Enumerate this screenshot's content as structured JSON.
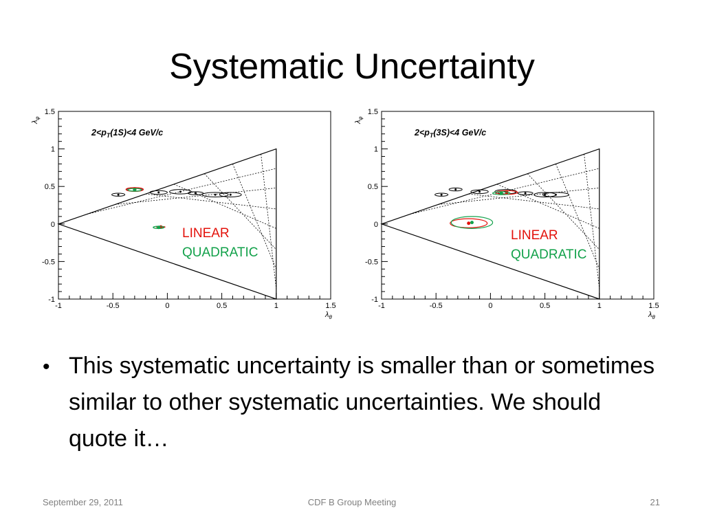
{
  "slide": {
    "title": "Systematic Uncertainty",
    "bullet": "This systematic uncertainty is smaller than or sometimes similar to other systematic uncertainties.  We should quote it…",
    "footer_date": "September 29, 2011",
    "footer_center": "CDF B Group Meeting",
    "footer_page": "21"
  },
  "colors": {
    "linear": "#e3120b",
    "quadratic": "#12a14a",
    "frame": "#000000"
  },
  "chart_data": [
    {
      "type": "scatter",
      "annotation_prefix": "2<p",
      "annotation_sub": "T",
      "annotation_suffix": "(1S)<4 GeV/c",
      "xlabel": "λ",
      "xlabel_sub": "θ",
      "ylabel": "λ",
      "ylabel_sub": "φ",
      "xlim": [
        -1,
        1.5
      ],
      "ylim": [
        -1,
        1.5
      ],
      "xticks": [
        "-1",
        "-0.5",
        "0",
        "0.5",
        "1",
        "1.5"
      ],
      "yticks": [
        "-1",
        "-0.5",
        "0",
        "0.5",
        "1",
        "1.5"
      ],
      "legend": [
        "LINEAR",
        "QUADRATIC"
      ],
      "series": [
        {
          "name": "LINEAR",
          "color": "#e3120b",
          "ellipses": [
            {
              "x": -0.06,
              "y": -0.04,
              "rx": 0.04,
              "ry": 0.008
            },
            {
              "x": -0.3,
              "y": 0.46,
              "rx": 0.08,
              "ry": 0.025
            }
          ]
        },
        {
          "name": "QUADRATIC",
          "color": "#12a14a",
          "ellipses": [
            {
              "x": -0.08,
              "y": -0.045,
              "rx": 0.05,
              "ry": 0.015
            },
            {
              "x": -0.3,
              "y": 0.455,
              "rx": 0.06,
              "ry": 0.018
            }
          ]
        }
      ],
      "reference_points": [
        {
          "x": -0.45,
          "y": 0.39,
          "rx": 0.06,
          "ry": 0.02
        },
        {
          "x": -0.3,
          "y": 0.46,
          "rx": 0.07,
          "ry": 0.025
        },
        {
          "x": -0.08,
          "y": 0.42,
          "rx": 0.08,
          "ry": 0.025
        },
        {
          "x": 0.12,
          "y": 0.43,
          "rx": 0.1,
          "ry": 0.03
        },
        {
          "x": 0.26,
          "y": 0.41,
          "rx": 0.07,
          "ry": 0.02
        },
        {
          "x": 0.44,
          "y": 0.39,
          "rx": 0.12,
          "ry": 0.03
        },
        {
          "x": 0.58,
          "y": 0.39,
          "rx": 0.1,
          "ry": 0.03
        }
      ]
    },
    {
      "type": "scatter",
      "annotation_prefix": "2<p",
      "annotation_sub": "T",
      "annotation_suffix": "(3S)<4 GeV/c",
      "xlabel": "λ",
      "xlabel_sub": "θ",
      "ylabel": "λ",
      "ylabel_sub": "φ",
      "xlim": [
        -1,
        1.5
      ],
      "ylim": [
        -1,
        1.5
      ],
      "xticks": [
        "-1",
        "-0.5",
        "0",
        "0.5",
        "1",
        "1.5"
      ],
      "yticks": [
        "-1",
        "-0.5",
        "0",
        "0.5",
        "1",
        "1.5"
      ],
      "legend": [
        "LINEAR",
        "QUADRATIC"
      ],
      "series": [
        {
          "name": "LINEAR",
          "color": "#e3120b",
          "ellipses": [
            {
              "x": -0.2,
              "y": 0.01,
              "rx": 0.17,
              "ry": 0.06
            },
            {
              "x": 0.15,
              "y": 0.42,
              "rx": 0.1,
              "ry": 0.025
            }
          ]
        },
        {
          "name": "QUADRATIC",
          "color": "#12a14a",
          "ellipses": [
            {
              "x": -0.17,
              "y": 0.02,
              "rx": 0.19,
              "ry": 0.08
            },
            {
              "x": 0.1,
              "y": 0.41,
              "rx": 0.08,
              "ry": 0.02
            }
          ]
        }
      ],
      "reference_points": [
        {
          "x": -0.45,
          "y": 0.39,
          "rx": 0.06,
          "ry": 0.02
        },
        {
          "x": -0.32,
          "y": 0.46,
          "rx": 0.06,
          "ry": 0.02
        },
        {
          "x": -0.1,
          "y": 0.43,
          "rx": 0.08,
          "ry": 0.025
        },
        {
          "x": 0.14,
          "y": 0.43,
          "rx": 0.1,
          "ry": 0.03
        },
        {
          "x": 0.32,
          "y": 0.41,
          "rx": 0.07,
          "ry": 0.02
        },
        {
          "x": 0.5,
          "y": 0.39,
          "rx": 0.1,
          "ry": 0.03
        },
        {
          "x": 0.6,
          "y": 0.39,
          "rx": 0.12,
          "ry": 0.03
        }
      ]
    }
  ]
}
